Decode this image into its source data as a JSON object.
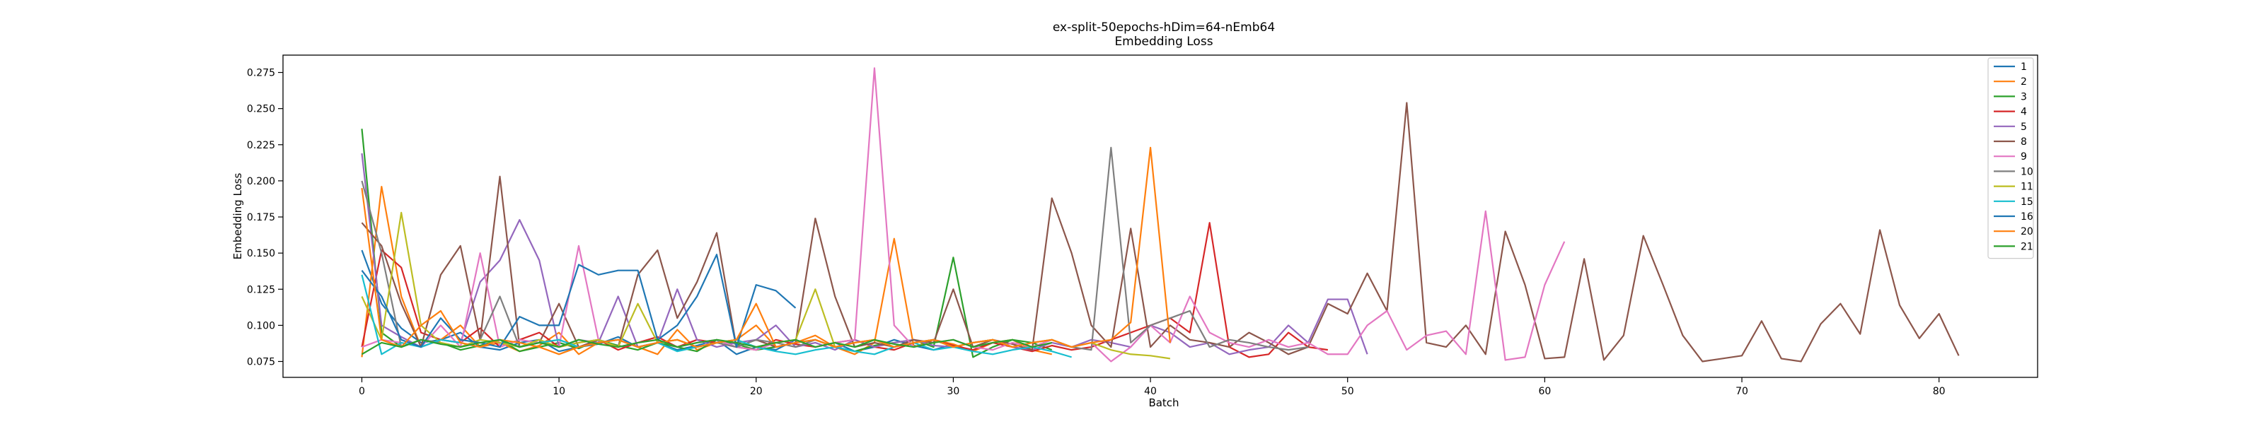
{
  "chart_data": {
    "type": "line",
    "title": "ex-split-50epochs-hDim=64-nEmb64",
    "subtitle": "Embedding Loss",
    "xlabel": "Batch",
    "ylabel": "Embedding Loss",
    "xlim": [
      -4,
      85
    ],
    "ylim": [
      0.064,
      0.287
    ],
    "x_ticks": [
      0,
      10,
      20,
      30,
      40,
      50,
      60,
      70,
      80
    ],
    "y_ticks": [
      0.075,
      0.1,
      0.125,
      0.15,
      0.175,
      0.2,
      0.225,
      0.25,
      0.275
    ],
    "grid": false,
    "legend_position": "top-right",
    "series": [
      {
        "name": "1",
        "color": "#1f77b4",
        "values": [
          0.152,
          0.115,
          0.098,
          0.088,
          0.09,
          0.095,
          0.085,
          0.083,
          0.088,
          0.09,
          0.082,
          0.085,
          0.087,
          0.092,
          0.085,
          0.088,
          0.083,
          0.086,
          0.09,
          0.08,
          0.085,
          0.083,
          0.09,
          0.085,
          0.088,
          0.082,
          0.085,
          0.09,
          0.086,
          0.083,
          0.087
        ]
      },
      {
        "name": "2",
        "color": "#ff7f0e",
        "values": [
          0.078,
          0.196,
          0.12,
          0.085,
          0.09,
          0.1,
          0.085,
          0.088,
          0.082,
          0.086,
          0.095,
          0.08,
          0.088,
          0.09,
          0.085,
          0.08,
          0.097,
          0.083,
          0.088,
          0.09,
          0.1,
          0.085,
          0.088,
          0.093,
          0.085,
          0.08,
          0.088,
          0.16,
          0.085,
          0.09,
          0.087,
          0.082,
          0.088,
          0.09,
          0.083,
          0.08
        ]
      },
      {
        "name": "3",
        "color": "#2ca02c",
        "values": [
          0.236,
          0.095,
          0.085,
          0.09,
          0.088,
          0.083,
          0.086,
          0.09,
          0.082,
          0.085,
          0.088,
          0.084,
          0.09,
          0.086,
          0.083,
          0.088,
          0.085,
          0.082,
          0.09,
          0.087,
          0.083,
          0.085,
          0.088,
          0.09,
          0.085,
          0.082,
          0.086,
          0.088,
          0.09,
          0.085,
          0.147,
          0.078,
          0.085,
          0.09,
          0.088,
          0.083
        ]
      },
      {
        "name": "4",
        "color": "#d62728",
        "values": [
          0.085,
          0.152,
          0.14,
          0.095,
          0.09,
          0.088,
          0.098,
          0.085,
          0.09,
          0.095,
          0.085,
          0.088,
          0.09,
          0.083,
          0.088,
          0.092,
          0.085,
          0.09,
          0.088,
          0.085,
          0.083,
          0.09,
          0.087,
          0.085,
          0.088,
          0.09,
          0.085,
          0.083,
          0.088,
          0.09,
          0.086,
          0.083,
          0.088,
          0.085,
          0.082,
          0.086,
          0.083,
          0.085,
          0.09,
          0.095,
          0.1,
          0.105,
          0.095,
          0.171,
          0.085,
          0.078,
          0.08,
          0.095,
          0.085,
          0.083
        ]
      },
      {
        "name": "5",
        "color": "#9467bd",
        "values": [
          0.219,
          0.1,
          0.092,
          0.085,
          0.09,
          0.088,
          0.13,
          0.145,
          0.173,
          0.145,
          0.085,
          0.09,
          0.088,
          0.12,
          0.085,
          0.088,
          0.125,
          0.09,
          0.085,
          0.088,
          0.09,
          0.1,
          0.085,
          0.088,
          0.083,
          0.09,
          0.085,
          0.088,
          0.09,
          0.086,
          0.085,
          0.088,
          0.09,
          0.085,
          0.083,
          0.088,
          0.085,
          0.09,
          0.088,
          0.085,
          0.1,
          0.095,
          0.085,
          0.088,
          0.08,
          0.083,
          0.085,
          0.1,
          0.088,
          0.118,
          0.118,
          0.08
        ]
      },
      {
        "name": "8",
        "color": "#8c564b",
        "values": [
          0.171,
          0.155,
          0.115,
          0.085,
          0.135,
          0.155,
          0.09,
          0.203,
          0.085,
          0.088,
          0.115,
          0.085,
          0.09,
          0.085,
          0.135,
          0.152,
          0.105,
          0.13,
          0.164,
          0.085,
          0.09,
          0.085,
          0.088,
          0.174,
          0.12,
          0.085,
          0.088,
          0.085,
          0.09,
          0.088,
          0.125,
          0.085,
          0.09,
          0.087,
          0.083,
          0.188,
          0.15,
          0.1,
          0.085,
          0.167,
          0.085,
          0.1,
          0.09,
          0.088,
          0.085,
          0.095,
          0.088,
          0.08,
          0.085,
          0.115,
          0.108,
          0.136,
          0.11,
          0.254,
          0.088,
          0.085,
          0.1,
          0.08,
          0.165,
          0.128,
          0.077,
          0.078,
          0.146,
          0.076,
          0.093,
          0.162,
          0.128,
          0.093,
          0.075,
          0.077,
          0.079,
          0.103,
          0.077,
          0.075,
          0.101,
          0.115,
          0.094,
          0.166,
          0.114,
          0.091,
          0.108,
          0.079
        ]
      },
      {
        "name": "9",
        "color": "#e377c2",
        "values": [
          0.085,
          0.09,
          0.088,
          0.085,
          0.1,
          0.085,
          0.15,
          0.085,
          0.09,
          0.088,
          0.085,
          0.155,
          0.09,
          0.085,
          0.088,
          0.09,
          0.085,
          0.088,
          0.09,
          0.085,
          0.083,
          0.088,
          0.09,
          0.085,
          0.088,
          0.09,
          0.278,
          0.1,
          0.085,
          0.088,
          0.09,
          0.085,
          0.083,
          0.088,
          0.085,
          0.09,
          0.085,
          0.088,
          0.075,
          0.085,
          0.1,
          0.088,
          0.12,
          0.095,
          0.088,
          0.085,
          0.09,
          0.085,
          0.088,
          0.08,
          0.08,
          0.1,
          0.11,
          0.083,
          0.093,
          0.096,
          0.08,
          0.179,
          0.076,
          0.078,
          0.128,
          0.158
        ]
      },
      {
        "name": "10",
        "color": "#7f7f7f",
        "values": [
          0.2,
          0.15,
          0.085,
          0.09,
          0.088,
          0.085,
          0.09,
          0.12,
          0.085,
          0.088,
          0.09,
          0.085,
          0.088,
          0.09,
          0.085,
          0.088,
          0.09,
          0.085,
          0.088,
          0.085,
          0.09,
          0.088,
          0.085,
          0.09,
          0.085,
          0.088,
          0.09,
          0.085,
          0.088,
          0.09,
          0.085,
          0.088,
          0.09,
          0.085,
          0.088,
          0.09,
          0.085,
          0.083,
          0.223,
          0.088,
          0.1,
          0.105,
          0.11,
          0.085,
          0.09,
          0.088,
          0.085,
          0.083,
          0.085
        ]
      },
      {
        "name": "11",
        "color": "#bcbd22",
        "values": [
          0.12,
          0.09,
          0.178,
          0.1,
          0.088,
          0.085,
          0.09,
          0.088,
          0.085,
          0.09,
          0.085,
          0.088,
          0.09,
          0.085,
          0.115,
          0.088,
          0.09,
          0.085,
          0.088,
          0.09,
          0.085,
          0.088,
          0.09,
          0.125,
          0.085,
          0.088,
          0.09,
          0.085,
          0.088,
          0.09,
          0.085,
          0.088,
          0.09,
          0.085,
          0.088,
          0.09,
          0.085,
          0.088,
          0.083,
          0.08,
          0.079,
          0.077
        ]
      },
      {
        "name": "15",
        "color": "#17becf",
        "values": [
          0.135,
          0.08,
          0.088,
          0.085,
          0.09,
          0.088,
          0.085,
          0.09,
          0.085,
          0.088,
          0.09,
          0.085,
          0.088,
          0.09,
          0.085,
          0.088,
          0.082,
          0.085,
          0.088,
          0.09,
          0.085,
          0.082,
          0.08,
          0.083,
          0.085,
          0.082,
          0.08,
          0.085,
          0.088,
          0.083,
          0.085,
          0.082,
          0.08,
          0.083,
          0.085,
          0.082,
          0.078
        ]
      },
      {
        "name": "16",
        "color": "#1f77b4",
        "values": [
          0.138,
          0.12,
          0.09,
          0.085,
          0.105,
          0.09,
          0.088,
          0.085,
          0.106,
          0.1,
          0.1,
          0.142,
          0.135,
          0.138,
          0.138,
          0.09,
          0.1,
          0.12,
          0.149,
          0.085,
          0.128,
          0.124,
          0.112
        ]
      },
      {
        "name": "20",
        "color": "#ff7f0e",
        "values": [
          0.195,
          0.09,
          0.085,
          0.1,
          0.11,
          0.088,
          0.085,
          0.09,
          0.088,
          0.085,
          0.08,
          0.085,
          0.088,
          0.09,
          0.085,
          0.088,
          0.09,
          0.085,
          0.088,
          0.09,
          0.115,
          0.085,
          0.088,
          0.09,
          0.085,
          0.088,
          0.09,
          0.085,
          0.088,
          0.09,
          0.085,
          0.088,
          0.09,
          0.085,
          0.088,
          0.09,
          0.085,
          0.088,
          0.09,
          0.102,
          0.223,
          0.088
        ]
      },
      {
        "name": "21",
        "color": "#2ca02c",
        "values": [
          0.08,
          0.088,
          0.085,
          0.09,
          0.087,
          0.085,
          0.088,
          0.09,
          0.085,
          0.088,
          0.085,
          0.09,
          0.087,
          0.085,
          0.088,
          0.09,
          0.085,
          0.088,
          0.09,
          0.088,
          0.085,
          0.088,
          0.09,
          0.085,
          0.088,
          0.085,
          0.09,
          0.087,
          0.085,
          0.088,
          0.09,
          0.085,
          0.088,
          0.09,
          0.085,
          0.088
        ]
      }
    ]
  }
}
